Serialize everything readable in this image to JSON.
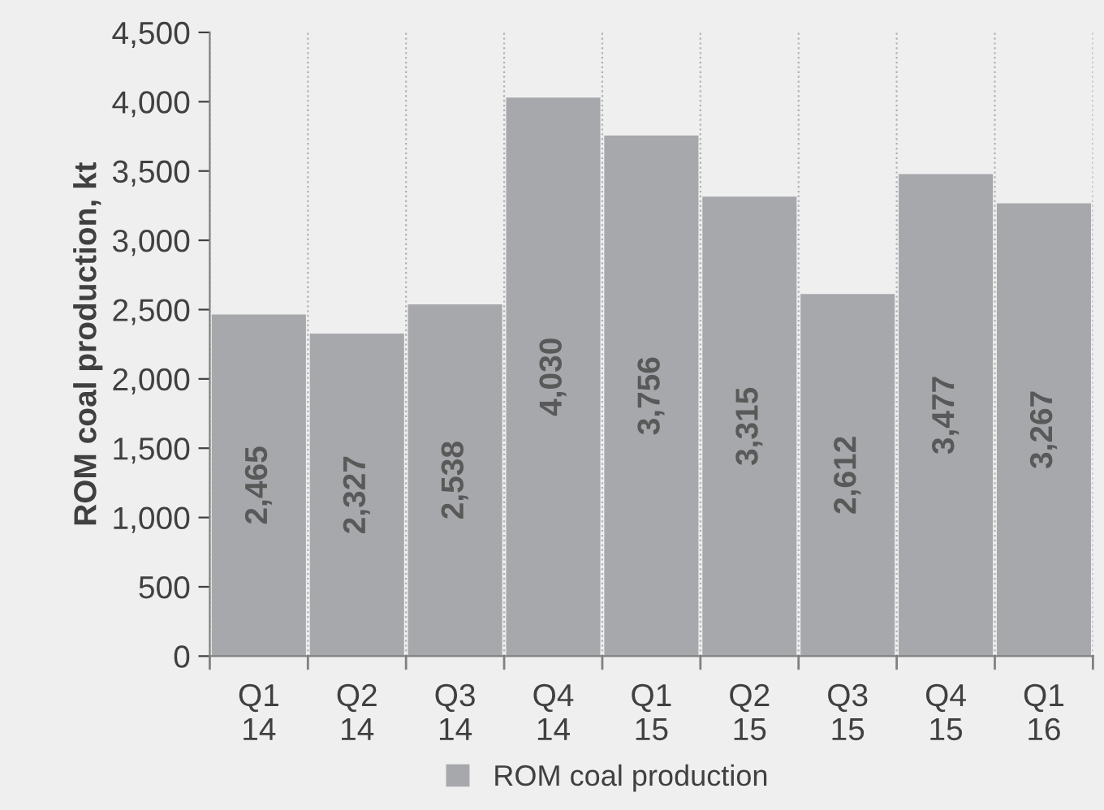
{
  "chart_data": {
    "type": "bar",
    "ylabel": "ROM coal production, kt",
    "categories": [
      "Q1\n14",
      "Q2\n14",
      "Q3\n14",
      "Q4\n14",
      "Q1\n15",
      "Q2\n15",
      "Q3\n15",
      "Q4\n15",
      "Q1\n16"
    ],
    "series": [
      {
        "name": "ROM coal production",
        "color": "#a6a8ab",
        "values": [
          2465,
          2327,
          2538,
          4030,
          3756,
          3315,
          2612,
          3477,
          3267
        ],
        "value_labels": [
          "2,465",
          "2,327",
          "2,538",
          "4,030",
          "3,756",
          "3,315",
          "2,612",
          "3,477",
          "3,267"
        ]
      }
    ],
    "ylim": [
      0,
      4500
    ],
    "yticks": [
      0,
      500,
      {
        "value": 1000,
        "label": "1,000"
      },
      {
        "value": 1500,
        "label": "1,500"
      },
      {
        "value": 2000,
        "label": "2,000"
      },
      {
        "value": 2500,
        "label": "2,500"
      },
      {
        "value": 3000,
        "label": "3,000"
      },
      {
        "value": 3500,
        "label": "3,500"
      },
      {
        "value": 4000,
        "label": "4,000"
      },
      {
        "value": 4500,
        "label": "4,500"
      }
    ],
    "grid": "x",
    "legend": "bottom"
  }
}
